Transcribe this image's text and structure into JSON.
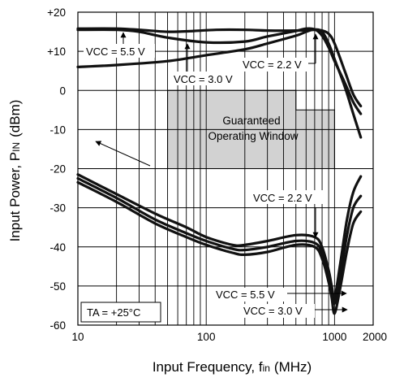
{
  "chart_data": {
    "type": "line",
    "xlabel": "Input Frequency, f",
    "xlabel_sub": "in",
    "xlabel_unit": "(MHz)",
    "ylabel": "Input Power, P",
    "ylabel_sub": "IN",
    "ylabel_unit": "(dBm)",
    "xscale": "log",
    "xlim": [
      10,
      2000
    ],
    "ylim": [
      -60,
      20
    ],
    "grid": true,
    "x_ticks": [
      {
        "value": 10,
        "label": "10"
      },
      {
        "value": 100,
        "label": "100"
      },
      {
        "value": 1000,
        "label": "1000"
      },
      {
        "value": 2000,
        "label": "2000"
      }
    ],
    "y_ticks": [
      {
        "value": 20,
        "label": "+20"
      },
      {
        "value": 10,
        "label": "+10"
      },
      {
        "value": 0,
        "label": "0"
      },
      {
        "value": -10,
        "label": "-10"
      },
      {
        "value": -20,
        "label": "-20"
      },
      {
        "value": -30,
        "label": "-30"
      },
      {
        "value": -40,
        "label": "-40"
      },
      {
        "value": -50,
        "label": "-50"
      },
      {
        "value": -60,
        "label": "-60"
      }
    ],
    "window": {
      "label_line1": "Guaranteed",
      "label_line2": "Operating Window",
      "regions": [
        {
          "x": [
            50,
            500
          ],
          "y": [
            -20,
            0
          ]
        },
        {
          "x": [
            500,
            1000
          ],
          "y": [
            -20,
            -5
          ]
        }
      ]
    },
    "series": [
      {
        "label": "VCC = 5.5 V",
        "group": "upper",
        "x": [
          10,
          20,
          30,
          50,
          80,
          120,
          200,
          300,
          500,
          700,
          800,
          900,
          1000,
          1200,
          1400,
          1600
        ],
        "y": [
          15.8,
          15.8,
          15.5,
          15,
          15.2,
          15.5,
          15.5,
          15.3,
          15.3,
          15.5,
          15.3,
          14.5,
          12,
          5,
          -1,
          -4
        ]
      },
      {
        "label": "VCC = 3.0 V",
        "group": "upper",
        "x": [
          10,
          20,
          30,
          50,
          100,
          200,
          300,
          500,
          600,
          700,
          800,
          900,
          1000,
          1200,
          1400,
          1600
        ],
        "y": [
          15.5,
          15.5,
          15,
          13.5,
          12.3,
          12.5,
          13.8,
          15.2,
          15.8,
          15.6,
          14,
          11,
          7.5,
          2,
          -3,
          -6
        ]
      },
      {
        "label": "VCC = 2.2 V",
        "group": "upper",
        "x": [
          10,
          20,
          50,
          100,
          200,
          300,
          500,
          600,
          700,
          800,
          900,
          1000,
          1200,
          1400,
          1600
        ],
        "y": [
          6,
          6.5,
          7.5,
          9,
          10.5,
          12,
          14,
          15,
          15.6,
          15,
          12,
          8,
          1,
          -6,
          -12
        ]
      },
      {
        "label": "VCC = 2.2 V",
        "group": "lower",
        "x": [
          10,
          20,
          40,
          70,
          100,
          160,
          200,
          300,
          500,
          700,
          800,
          900,
          950,
          1000,
          1100,
          1250,
          1400,
          1600
        ],
        "y": [
          -21.5,
          -26.5,
          -31.5,
          -35,
          -37.5,
          -39.5,
          -39.5,
          -38.5,
          -37,
          -37.5,
          -40,
          -46,
          -50,
          -53,
          -45,
          -33,
          -26,
          -22
        ]
      },
      {
        "label": "VCC = 5.5 V",
        "group": "lower",
        "x": [
          10,
          20,
          40,
          70,
          100,
          160,
          200,
          300,
          500,
          700,
          800,
          900,
          950,
          1000,
          1100,
          1250,
          1400,
          1600
        ],
        "y": [
          -22.5,
          -27.5,
          -33,
          -36.5,
          -38.5,
          -40.5,
          -40.8,
          -40,
          -38.5,
          -39,
          -41.5,
          -47.5,
          -51,
          -54.5,
          -48,
          -37,
          -30,
          -27
        ]
      },
      {
        "label": "VCC = 3.0 V",
        "group": "lower",
        "x": [
          10,
          20,
          40,
          70,
          100,
          160,
          200,
          300,
          500,
          700,
          800,
          900,
          950,
          1000,
          1100,
          1250,
          1400,
          1600
        ],
        "y": [
          -23.5,
          -28.5,
          -34,
          -37.5,
          -39.5,
          -41.5,
          -42,
          -41.3,
          -39.5,
          -40,
          -43,
          -49,
          -53,
          -57,
          -51,
          -41,
          -34,
          -31
        ]
      }
    ],
    "annotations": [
      {
        "label": "VCC = 5.5 V",
        "pos": "upper-left"
      },
      {
        "label": "VCC = 3.0 V",
        "pos": "upper-middle"
      },
      {
        "label": "VCC = 2.2 V",
        "pos": "upper-right"
      },
      {
        "label": "VCC = 2.2 V",
        "pos": "lower-upper"
      },
      {
        "label": "VCC = 5.5 V",
        "pos": "lower-middle"
      },
      {
        "label": "VCC = 3.0 V",
        "pos": "lower-bottom"
      },
      {
        "label": "TA = +25°C",
        "pos": "bottom-left"
      }
    ]
  }
}
